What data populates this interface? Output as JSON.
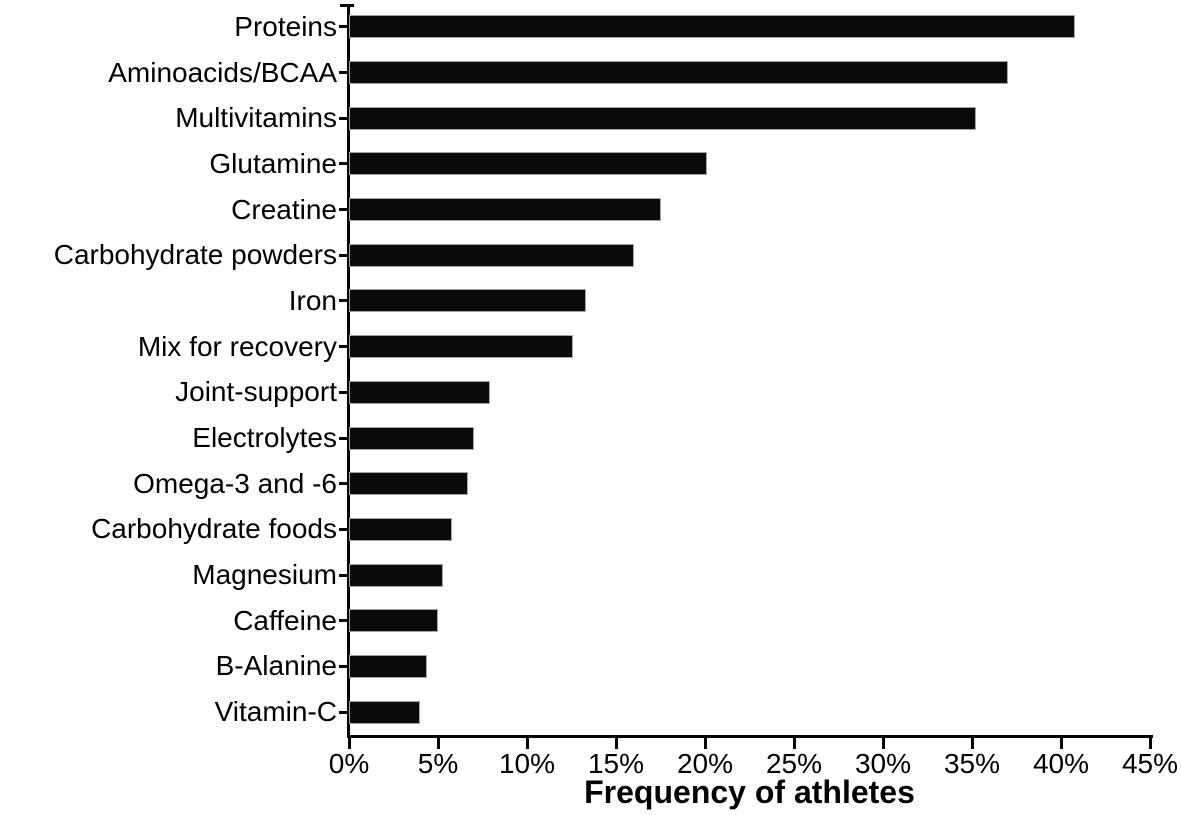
{
  "chart_data": {
    "type": "bar",
    "orientation": "horizontal",
    "title": "",
    "xlabel": "Frequency of athletes",
    "ylabel": "",
    "unit": "%",
    "xlim": [
      0,
      45
    ],
    "x_tick_step": 5,
    "x_tick_labels": [
      "0%",
      "5%",
      "10%",
      "15%",
      "20%",
      "25%",
      "30%",
      "35%",
      "40%",
      "45%"
    ],
    "grid": false,
    "legend": "none",
    "bar_color": "#0a0a0a",
    "categories": [
      "Proteins",
      "Aminoacids/BCAA",
      "Multivitamins",
      "Glutamine",
      "Creatine",
      "Carbohydrate powders",
      "Iron",
      "Mix for recovery",
      "Joint-support",
      "Electrolytes",
      "Omega-3 and -6",
      "Carbohydrate foods",
      "Magnesium",
      "Caffeine",
      "B-Alanine",
      "Vitamin-C"
    ],
    "values": [
      40.8,
      37.0,
      35.2,
      20.1,
      17.5,
      16.0,
      13.3,
      12.6,
      7.9,
      7.0,
      6.7,
      5.8,
      5.3,
      5.0,
      4.4,
      4.0
    ]
  }
}
